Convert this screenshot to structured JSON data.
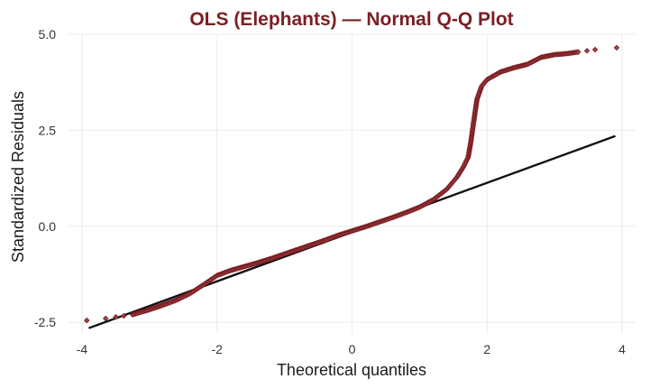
{
  "chart_data": {
    "type": "scatter",
    "title": "OLS (Elephants) — Normal Q-Q Plot",
    "xlabel": "Theoretical quantiles",
    "ylabel": "Standardized Residuals",
    "xlim": [
      -4.2,
      4.2
    ],
    "ylim": [
      -2.8,
      5.0
    ],
    "x_ticks": [
      -4,
      -2,
      0,
      2,
      4
    ],
    "x_tick_labels": [
      "-4",
      "-2",
      "0",
      "2",
      "4"
    ],
    "y_ticks": [
      -2.5,
      0,
      2.5,
      5
    ],
    "y_tick_labels": [
      "-2.5",
      "0.0",
      "2.5",
      "5.0"
    ],
    "grid": true,
    "reference_line": {
      "x": [
        -3.9,
        3.9
      ],
      "y": [
        -2.65,
        2.35
      ]
    },
    "series": [
      {
        "name": "Standardized residuals",
        "points": [
          [
            -3.93,
            -2.45
          ],
          [
            -3.65,
            -2.4
          ],
          [
            -3.5,
            -2.36
          ],
          [
            -3.38,
            -2.33
          ],
          [
            -3.25,
            -2.3
          ],
          [
            -3.1,
            -2.22
          ],
          [
            -3.0,
            -2.17
          ],
          [
            -2.8,
            -2.05
          ],
          [
            -2.6,
            -1.92
          ],
          [
            -2.4,
            -1.75
          ],
          [
            -2.2,
            -1.52
          ],
          [
            -2.0,
            -1.28
          ],
          [
            -1.8,
            -1.15
          ],
          [
            -1.6,
            -1.05
          ],
          [
            -1.4,
            -0.95
          ],
          [
            -1.2,
            -0.84
          ],
          [
            -1.0,
            -0.72
          ],
          [
            -0.8,
            -0.6
          ],
          [
            -0.6,
            -0.48
          ],
          [
            -0.4,
            -0.36
          ],
          [
            -0.2,
            -0.23
          ],
          [
            0.0,
            -0.12
          ],
          [
            0.2,
            -0.01
          ],
          [
            0.4,
            0.11
          ],
          [
            0.6,
            0.23
          ],
          [
            0.8,
            0.36
          ],
          [
            1.0,
            0.5
          ],
          [
            1.2,
            0.69
          ],
          [
            1.4,
            0.96
          ],
          [
            1.55,
            1.27
          ],
          [
            1.65,
            1.55
          ],
          [
            1.72,
            1.8
          ],
          [
            1.76,
            2.2
          ],
          [
            1.8,
            2.7
          ],
          [
            1.85,
            3.3
          ],
          [
            1.92,
            3.65
          ],
          [
            2.0,
            3.82
          ],
          [
            2.2,
            4.02
          ],
          [
            2.4,
            4.13
          ],
          [
            2.6,
            4.22
          ],
          [
            2.8,
            4.4
          ],
          [
            3.0,
            4.47
          ],
          [
            3.2,
            4.5
          ],
          [
            3.35,
            4.54
          ],
          [
            3.48,
            4.57
          ],
          [
            3.6,
            4.6
          ],
          [
            3.92,
            4.65
          ]
        ]
      }
    ]
  }
}
